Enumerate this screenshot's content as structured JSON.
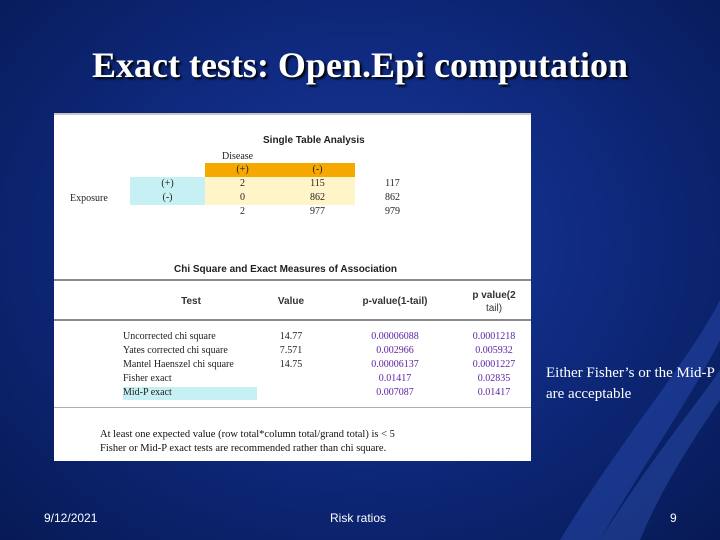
{
  "slide": {
    "title": "Exact tests: Open.Epi computation",
    "note": "Either Fisher’s or the Mid-P are acceptable",
    "footer": {
      "date": "9/12/2021",
      "center": "Risk ratios",
      "page": "9"
    }
  },
  "table1": {
    "heading": "Single Table Analysis",
    "disease_label": "Disease",
    "exposure_label": "Exposure",
    "col_pos": "(+)",
    "col_neg": "(-)",
    "rows": [
      {
        "label": "(+)",
        "a": "2",
        "b": "115",
        "total": "117"
      },
      {
        "label": "(-)",
        "a": "0",
        "b": "862",
        "total": "862"
      }
    ],
    "totals": {
      "a": "2",
      "b": "977",
      "total": "979"
    }
  },
  "table2": {
    "heading": "Chi Square and Exact Measures of Association",
    "col_test": "Test",
    "col_value": "Value",
    "col_p1": "p-value(1-tail)",
    "col_p2_line1": "p value(2",
    "col_p2_line2": "tail)",
    "rows": [
      {
        "test": "Uncorrected chi square",
        "value": "14.77",
        "p1": "0.00006088",
        "p2": "0.0001218"
      },
      {
        "test": "Yates corrected chi square",
        "value": "7.571",
        "p1": "0.002966",
        "p2": "0.005932"
      },
      {
        "test": "Mantel Haenszel chi square",
        "value": "14.75",
        "p1": "0.00006137",
        "p2": "0.0001227"
      },
      {
        "test": "Fisher exact",
        "value": "",
        "p1": "0.01417",
        "p2": "0.02835"
      },
      {
        "test": "Mid-P exact",
        "value": "",
        "p1": "0.007087",
        "p2": "0.01417"
      }
    ],
    "footnote1": "At least one expected value (row total*column total/grand total) is < 5",
    "footnote2": "Fisher or Mid-P exact tests are recommended rather than chi square."
  },
  "colors": {
    "background": "#0f2a80",
    "header_orange": "#f7a800",
    "cell_yellow": "#fff5c8",
    "cell_blue": "#c6f0f4",
    "pvalue_purple": "#5a1fa0"
  }
}
